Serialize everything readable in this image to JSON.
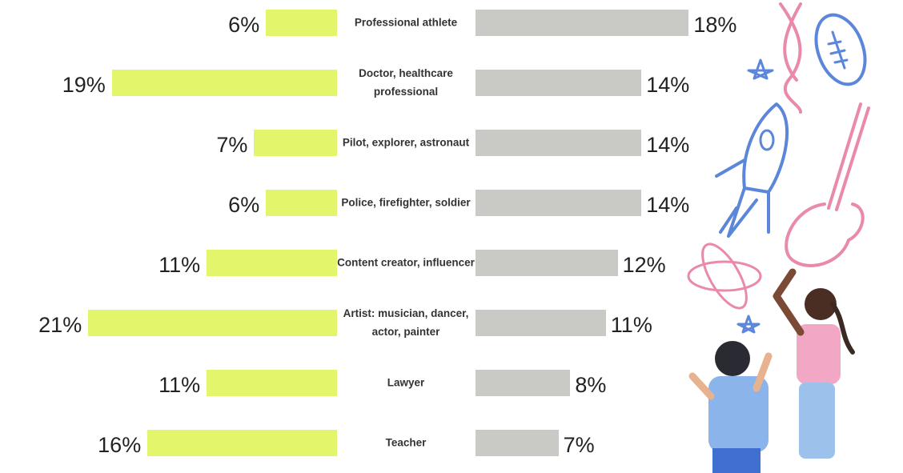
{
  "chart_data": {
    "type": "butterfly",
    "categories": [
      "Professional athlete",
      "Doctor, healthcare professional",
      "Pilot, explorer, astronaut",
      "Police, firefighter, soldier",
      "Content creator, influencer",
      "Artist: musician, dancer, actor, painter",
      "Lawyer",
      "Teacher"
    ],
    "series": [
      {
        "color": "#e3f56b",
        "side": "left",
        "values": [
          6,
          19,
          7,
          6,
          11,
          21,
          11,
          16
        ],
        "value_labels": [
          "6%",
          "19%",
          "7%",
          "6%",
          "11%",
          "21%",
          "11%",
          "16%"
        ]
      },
      {
        "color": "#c9c9c5",
        "side": "right",
        "values": [
          18,
          14,
          14,
          14,
          12,
          11,
          8,
          7
        ],
        "value_labels": [
          "18%",
          "14%",
          "14%",
          "14%",
          "12%",
          "11%",
          "8%",
          "7%"
        ]
      }
    ]
  }
}
